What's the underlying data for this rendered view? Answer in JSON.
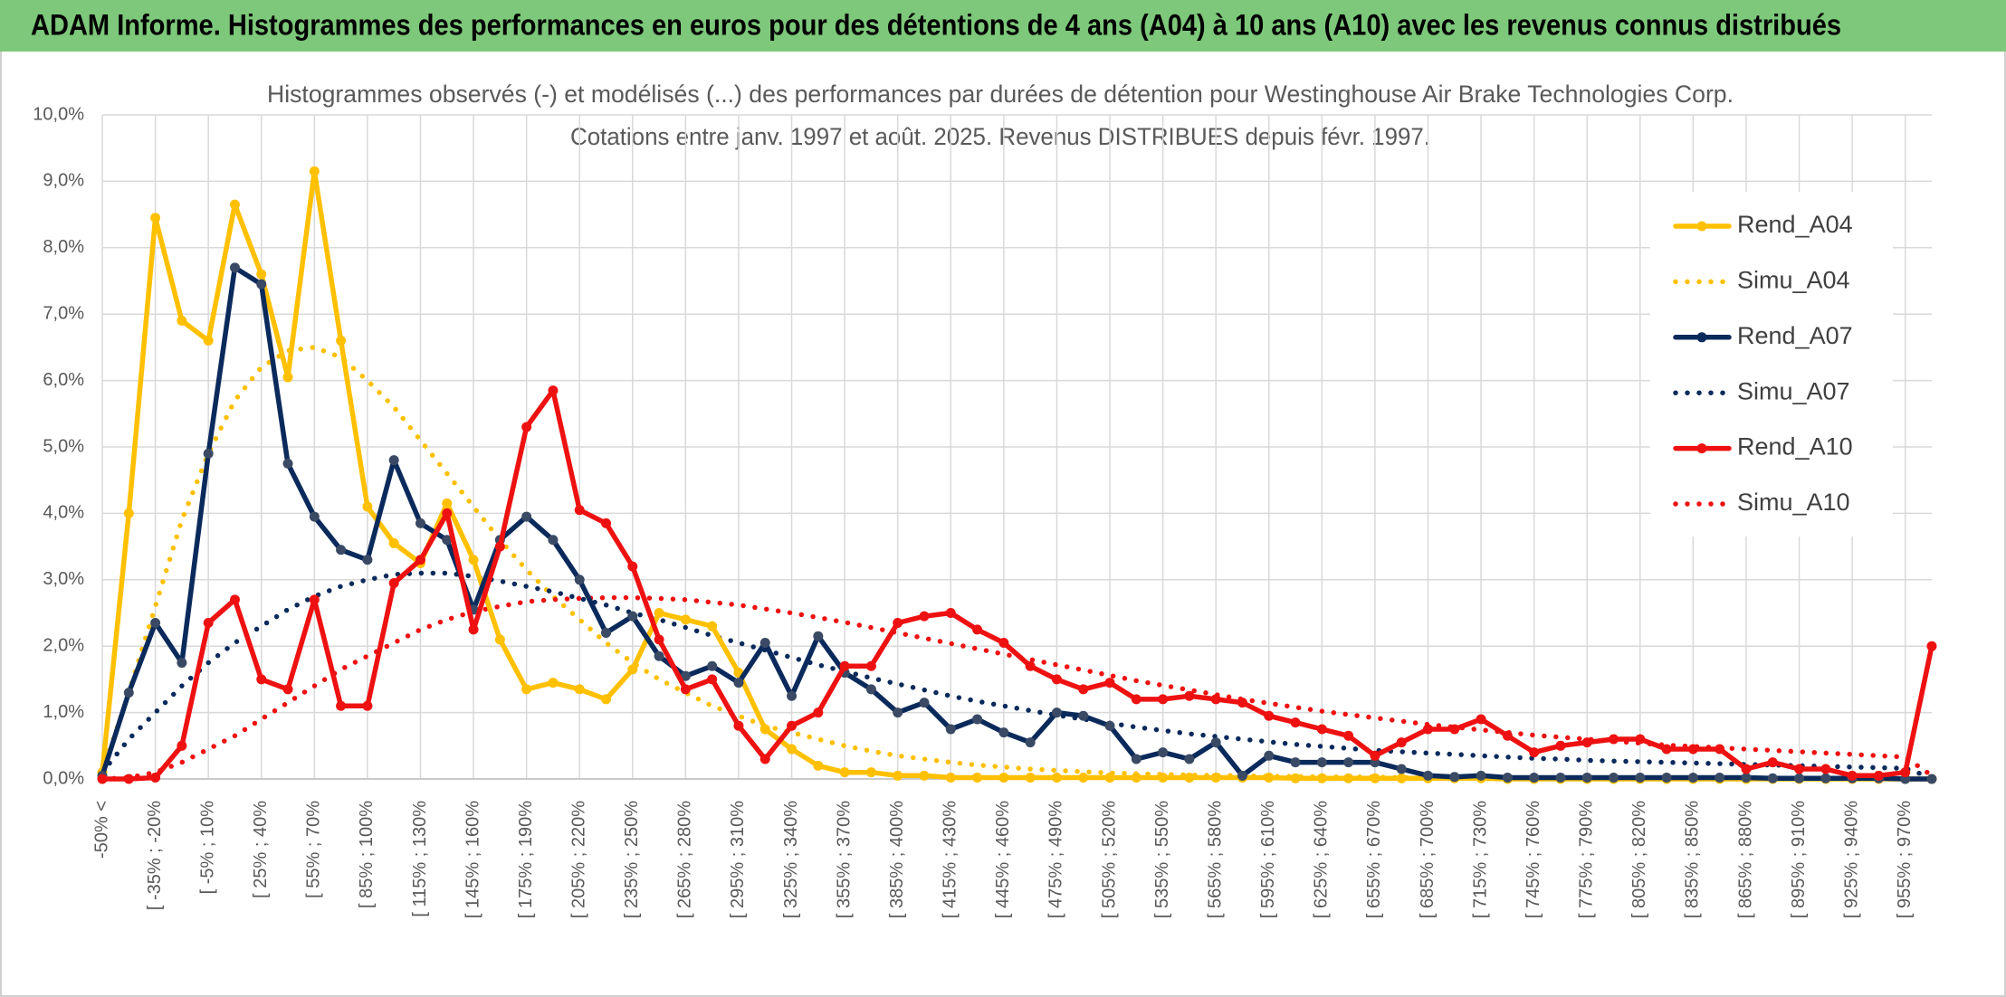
{
  "chart_data": {
    "type": "line",
    "banner": "ADAM Informe. Histogrammes des performances en euros pour des détentions de 4 ans (A04) à 10 ans (A10) avec les revenus connus distribués",
    "title": "Histogrammes observés (-) et modélisés (...) des performances par durées de détention pour Westinghouse Air Brake Technologies Corp.",
    "subtitle": "Cotations entre janv. 1997 et août. 2025. Revenus DISTRIBUES depuis févr. 1997.",
    "categories": [
      "-50% <",
      null,
      "[ -35% ; -20%",
      null,
      "[ -5% ; 10%",
      null,
      "[ 25% ; 40%",
      null,
      "[ 55% ; 70%",
      null,
      "[ 85% ; 100%",
      null,
      "[ 115% ; 130%",
      null,
      "[ 145% ; 160%",
      null,
      "[ 175% ; 190%",
      null,
      "[ 205% ; 220%",
      null,
      "[ 235% ; 250%",
      null,
      "[ 265% ; 280%",
      null,
      "[ 295% ; 310%",
      null,
      "[ 325% ; 340%",
      null,
      "[ 355% ; 370%",
      null,
      "[ 385% ; 400%",
      null,
      "[ 415% ; 430%",
      null,
      "[ 445% ; 460%",
      null,
      "[ 475% ; 490%",
      null,
      "[ 505% ; 520%",
      null,
      "[ 535% ; 550%",
      null,
      "[ 565% ; 580%",
      null,
      "[ 595% ; 610%",
      null,
      "[ 625% ; 640%",
      null,
      "[ 655% ; 670%",
      null,
      "[ 685% ; 700%",
      null,
      "[ 715% ; 730%",
      null,
      "[ 745% ; 760%",
      null,
      "[ 775% ; 790%",
      null,
      "[ 805% ; 820%",
      null,
      "[ 835% ; 850%",
      null,
      "[ 865% ; 880%",
      null,
      "[ 895% ; 910%",
      null,
      "[ 925% ; 940%",
      null,
      "[ 955% ; 970%",
      null
    ],
    "ylim": [
      0,
      10
    ],
    "yticks": [
      {
        "value": 0,
        "label": "0,0%"
      },
      {
        "value": 1,
        "label": "1,0%"
      },
      {
        "value": 2,
        "label": "2,0%"
      },
      {
        "value": 3,
        "label": "3,0%"
      },
      {
        "value": 4,
        "label": "4,0%"
      },
      {
        "value": 5,
        "label": "5,0%"
      },
      {
        "value": 6,
        "label": "6,0%"
      },
      {
        "value": 7,
        "label": "7,0%"
      },
      {
        "value": 8,
        "label": "8,0%"
      },
      {
        "value": 9,
        "label": "9,0%"
      },
      {
        "value": 10,
        "label": "10,0%"
      }
    ],
    "grid": true,
    "legend": "right",
    "series": [
      {
        "name": "Rend_A04",
        "color": "#ffc000",
        "style": "solid",
        "markers": true,
        "values": [
          0.1,
          4.0,
          8.45,
          6.9,
          6.6,
          8.65,
          7.6,
          6.05,
          9.15,
          6.6,
          4.1,
          3.55,
          3.25,
          4.15,
          3.3,
          2.1,
          1.35,
          1.45,
          1.35,
          1.2,
          1.65,
          2.5,
          2.4,
          2.3,
          1.6,
          0.75,
          0.45,
          0.2,
          0.1,
          0.1,
          0.05,
          0.05,
          0.02,
          0.02,
          0.02,
          0.02,
          0.02,
          0.02,
          0.02,
          0.02,
          0.02,
          0.02,
          0.02,
          0.02,
          0.02,
          0.01,
          0.01,
          0.01,
          0.01,
          0.01,
          0.01,
          0.01,
          0.01,
          0,
          0,
          0,
          0,
          0,
          0,
          0,
          0,
          0,
          0,
          0,
          0,
          0,
          0,
          0,
          0,
          0
        ]
      },
      {
        "name": "Simu_A04",
        "color": "#ffc000",
        "style": "dotted",
        "markers": false,
        "values": [
          0.1,
          1.3,
          2.6,
          3.9,
          4.9,
          5.7,
          6.2,
          6.45,
          6.5,
          6.35,
          6.0,
          5.6,
          5.1,
          4.6,
          4.1,
          3.6,
          3.15,
          2.75,
          2.4,
          2.05,
          1.75,
          1.5,
          1.3,
          1.1,
          0.95,
          0.8,
          0.7,
          0.6,
          0.5,
          0.42,
          0.35,
          0.3,
          0.25,
          0.21,
          0.18,
          0.15,
          0.13,
          0.11,
          0.09,
          0.08,
          0.07,
          0.06,
          0.05,
          0.05,
          0.04,
          0.04,
          0.03,
          0.03,
          0.03,
          0.02,
          0.02,
          0.01,
          0.01,
          0.01,
          0.01,
          0.01,
          0,
          0,
          0,
          0,
          0,
          0,
          0,
          0,
          0,
          0,
          0,
          0,
          0,
          0
        ]
      },
      {
        "name": "Rend_A07",
        "color": "#0b2a5c",
        "style": "solid",
        "markers": true,
        "values": [
          0.05,
          1.3,
          2.35,
          1.75,
          4.9,
          7.7,
          7.45,
          4.75,
          3.95,
          3.45,
          3.3,
          4.8,
          3.85,
          3.6,
          2.55,
          3.6,
          3.95,
          3.6,
          3.0,
          2.2,
          2.45,
          1.85,
          1.55,
          1.7,
          1.45,
          2.05,
          1.25,
          2.15,
          1.6,
          1.35,
          1.0,
          1.15,
          0.75,
          0.9,
          0.7,
          0.55,
          1.0,
          0.95,
          0.8,
          0.3,
          0.4,
          0.3,
          0.55,
          0.05,
          0.35,
          0.25,
          0.25,
          0.25,
          0.25,
          0.15,
          0.05,
          0.03,
          0.05,
          0.02,
          0.02,
          0.02,
          0.02,
          0.02,
          0.02,
          0.02,
          0.02,
          0.02,
          0.02,
          0.01,
          0.01,
          0.01,
          0.01,
          0.01,
          0,
          0
        ]
      },
      {
        "name": "Simu_A07",
        "color": "#0b2a5c",
        "style": "dotted",
        "markers": false,
        "values": [
          0.1,
          0.6,
          1.0,
          1.4,
          1.75,
          2.05,
          2.3,
          2.55,
          2.75,
          2.9,
          3.0,
          3.08,
          3.1,
          3.1,
          3.05,
          2.98,
          2.9,
          2.82,
          2.72,
          2.62,
          2.5,
          2.4,
          2.28,
          2.16,
          2.05,
          1.94,
          1.83,
          1.72,
          1.62,
          1.52,
          1.43,
          1.34,
          1.25,
          1.17,
          1.1,
          1.03,
          0.96,
          0.9,
          0.84,
          0.78,
          0.73,
          0.68,
          0.64,
          0.6,
          0.56,
          0.52,
          0.49,
          0.46,
          0.43,
          0.41,
          0.39,
          0.37,
          0.35,
          0.33,
          0.31,
          0.3,
          0.28,
          0.27,
          0.26,
          0.25,
          0.24,
          0.23,
          0.22,
          0.21,
          0.2,
          0.19,
          0.18,
          0.17,
          0.16,
          0.02
        ]
      },
      {
        "name": "Rend_A10",
        "color": "#ee1111",
        "style": "solid",
        "markers": true,
        "values": [
          0,
          0,
          0.02,
          0.5,
          2.35,
          2.7,
          1.5,
          1.35,
          2.7,
          1.1,
          1.1,
          2.95,
          3.3,
          4.0,
          2.25,
          3.5,
          5.3,
          5.85,
          4.05,
          3.85,
          3.2,
          2.1,
          1.35,
          1.5,
          0.8,
          0.3,
          0.8,
          1.0,
          1.7,
          1.7,
          2.35,
          2.45,
          2.5,
          2.25,
          2.05,
          1.7,
          1.5,
          1.35,
          1.45,
          1.2,
          1.2,
          1.25,
          1.2,
          1.15,
          0.95,
          0.85,
          0.75,
          0.65,
          0.35,
          0.55,
          0.75,
          0.75,
          0.9,
          0.65,
          0.4,
          0.5,
          0.55,
          0.6,
          0.6,
          0.45,
          0.45,
          0.45,
          0.15,
          0.25,
          0.15,
          0.15,
          0.05,
          0.05,
          0.1,
          2.0
        ]
      },
      {
        "name": "Simu_A10",
        "color": "#ee1111",
        "style": "dotted",
        "markers": false,
        "values": [
          0,
          0.02,
          0.1,
          0.25,
          0.45,
          0.65,
          0.9,
          1.15,
          1.4,
          1.65,
          1.85,
          2.05,
          2.25,
          2.4,
          2.52,
          2.6,
          2.67,
          2.7,
          2.72,
          2.73,
          2.73,
          2.72,
          2.7,
          2.66,
          2.62,
          2.56,
          2.5,
          2.43,
          2.36,
          2.28,
          2.2,
          2.12,
          2.04,
          1.96,
          1.88,
          1.8,
          1.72,
          1.64,
          1.56,
          1.48,
          1.41,
          1.34,
          1.27,
          1.2,
          1.14,
          1.08,
          1.02,
          0.97,
          0.92,
          0.87,
          0.82,
          0.78,
          0.74,
          0.7,
          0.66,
          0.63,
          0.6,
          0.57,
          0.54,
          0.51,
          0.49,
          0.47,
          0.45,
          0.43,
          0.41,
          0.39,
          0.37,
          0.35,
          0.33,
          0.05
        ]
      }
    ]
  }
}
